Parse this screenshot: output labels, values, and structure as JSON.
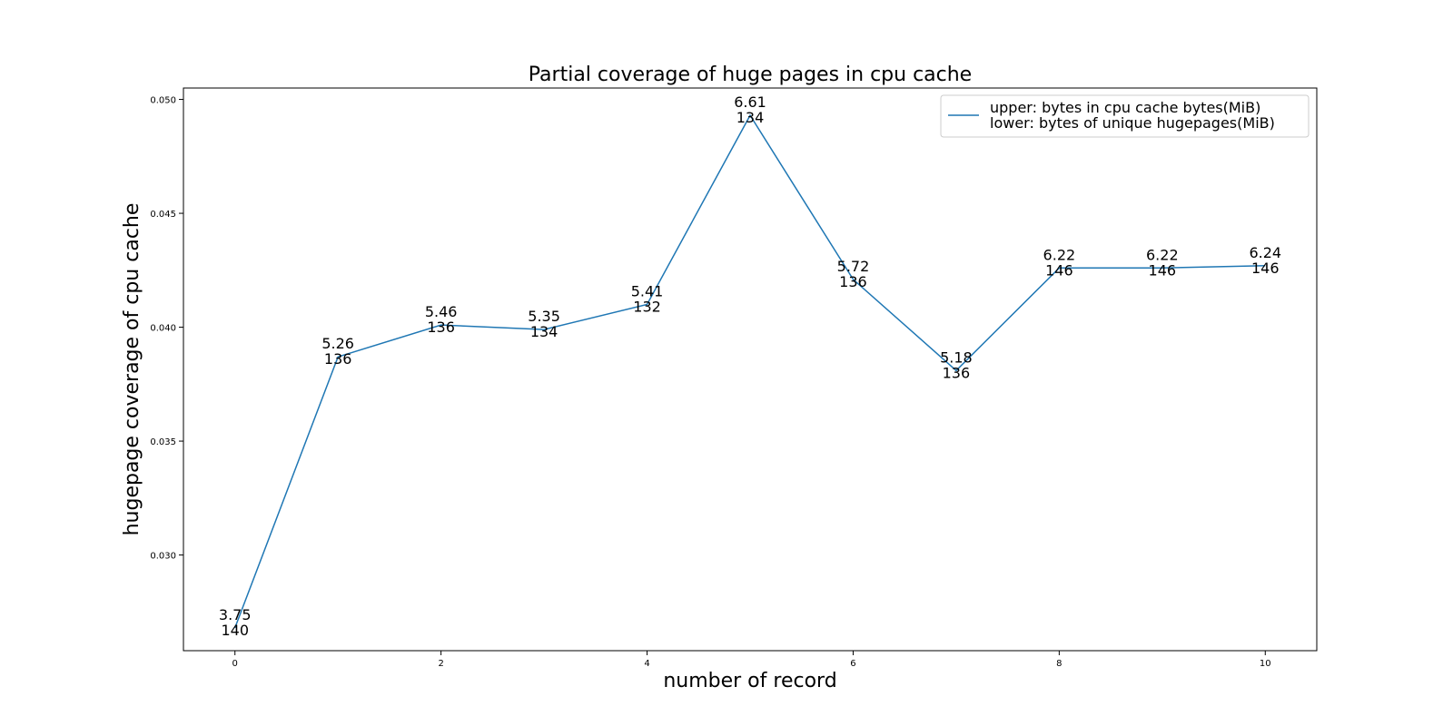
{
  "chart_data": {
    "type": "line",
    "title": "Partial coverage of huge pages in cpu cache",
    "xlabel": "number of record",
    "ylabel": "hugepage coverage of cpu cache",
    "xlim": [
      -0.5,
      10.5
    ],
    "ylim": [
      0.0258,
      0.0505
    ],
    "x_ticks": [
      0,
      2,
      4,
      6,
      8,
      10
    ],
    "y_ticks": [
      0.03,
      0.035,
      0.04,
      0.045,
      0.05
    ],
    "y_tick_labels": [
      "0.030",
      "0.035",
      "0.040",
      "0.045",
      "0.050"
    ],
    "grid": false,
    "legend_position": "top-right",
    "legend_entries": [
      "upper: bytes in cpu cache bytes(MiB)",
      "lower: bytes of unique hugepages(MiB)"
    ],
    "series": [
      {
        "color": "#1f77b4",
        "x": [
          0,
          1,
          2,
          3,
          4,
          5,
          6,
          7,
          8,
          9,
          10
        ],
        "y": [
          0.0268,
          0.0387,
          0.0401,
          0.0399,
          0.041,
          0.0493,
          0.0421,
          0.0381,
          0.0426,
          0.0426,
          0.0427
        ],
        "upper_labels": [
          "3.75",
          "5.26",
          "5.46",
          "5.35",
          "5.41",
          "6.61",
          "5.72",
          "5.18",
          "6.22",
          "6.22",
          "6.24"
        ],
        "lower_labels": [
          "140",
          "136",
          "136",
          "134",
          "132",
          "134",
          "136",
          "136",
          "146",
          "146",
          "146"
        ]
      }
    ]
  }
}
